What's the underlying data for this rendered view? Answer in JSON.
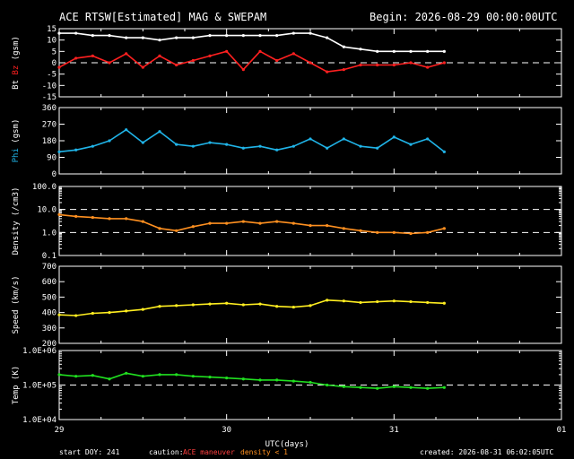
{
  "title": "ACE RTSW[Estimated] MAG & SWEPAM",
  "begin_label": "Begin: 2026-08-29 00:00:00UTC",
  "footer": {
    "start_doy": "start DOY: 241",
    "caution_label": "caution:",
    "maneuver_label": "ACE maneuver",
    "density_caution": "density < 1",
    "created": "created: 2026-08-31 06:02:05UTC",
    "maneuver_color": "#ff4040",
    "density_color": "#ff9020"
  },
  "xaxis": {
    "label": "UTC(days)",
    "ticks": [
      {
        "value": 0,
        "label": "29"
      },
      {
        "value": 1,
        "label": "30"
      },
      {
        "value": 2,
        "label": "31"
      },
      {
        "value": 3,
        "label": "01"
      }
    ],
    "range": [
      0,
      3
    ],
    "data_end": 2.3
  },
  "chart_data": [
    {
      "type": "scatter",
      "panel": "magnetic field",
      "ylabel_parts": [
        {
          "text": "Bt",
          "color": "#ffffff"
        },
        {
          "text": "Bz",
          "color": "#ff2020"
        },
        {
          "text": "(gsm)",
          "color": "#ffffff"
        }
      ],
      "ylim": [
        -15,
        15
      ],
      "ticks": [
        "15",
        "10",
        "5",
        "0",
        "-5",
        "-10",
        "-15"
      ],
      "tick_values": [
        15,
        10,
        5,
        0,
        -5,
        -10,
        -15
      ],
      "dashed_at": 0,
      "series": [
        {
          "name": "Bt",
          "color": "#ffffff",
          "x": [
            0.0,
            0.1,
            0.2,
            0.3,
            0.4,
            0.5,
            0.6,
            0.7,
            0.8,
            0.9,
            1.0,
            1.1,
            1.2,
            1.3,
            1.4,
            1.5,
            1.6,
            1.7,
            1.8,
            1.9,
            2.0,
            2.1,
            2.2,
            2.3
          ],
          "y": [
            13,
            13,
            12,
            12,
            11,
            11,
            10,
            11,
            11,
            12,
            12,
            12,
            12,
            12,
            13,
            13,
            11,
            7,
            6,
            5,
            5,
            5,
            5,
            5
          ]
        },
        {
          "name": "Bz",
          "color": "#ff2020",
          "x": [
            0.0,
            0.1,
            0.2,
            0.3,
            0.4,
            0.5,
            0.6,
            0.7,
            0.8,
            0.9,
            1.0,
            1.1,
            1.2,
            1.3,
            1.4,
            1.5,
            1.6,
            1.7,
            1.8,
            1.9,
            2.0,
            2.1,
            2.2,
            2.3
          ],
          "y": [
            -2,
            2,
            3,
            0,
            4,
            -2,
            3,
            -1,
            1,
            3,
            5,
            -3,
            5,
            1,
            4,
            0,
            -4,
            -3,
            -1,
            -1,
            -1,
            0,
            -2,
            0
          ]
        }
      ]
    },
    {
      "type": "scatter",
      "panel": "phi",
      "ylabel_parts": [
        {
          "text": "Phi",
          "color": "#20b4e8"
        },
        {
          "text": "(gsm)",
          "color": "#ffffff"
        }
      ],
      "ylim": [
        0,
        360
      ],
      "ticks": [
        "360",
        "270",
        "180",
        "90",
        "0"
      ],
      "tick_values": [
        360,
        270,
        180,
        90,
        0
      ],
      "series": [
        {
          "name": "Phi",
          "color": "#20b4e8",
          "x": [
            0.0,
            0.1,
            0.2,
            0.3,
            0.4,
            0.5,
            0.6,
            0.7,
            0.8,
            0.9,
            1.0,
            1.1,
            1.2,
            1.3,
            1.4,
            1.5,
            1.6,
            1.7,
            1.8,
            1.9,
            2.0,
            2.1,
            2.2,
            2.3
          ],
          "y": [
            120,
            130,
            150,
            180,
            240,
            170,
            230,
            160,
            150,
            170,
            160,
            140,
            150,
            130,
            150,
            190,
            140,
            190,
            150,
            140,
            200,
            160,
            190,
            120
          ]
        }
      ]
    },
    {
      "type": "scatter",
      "panel": "density",
      "ylabel": "Density (/cm3)",
      "ylabel_color": "#ff9020",
      "yscale": "log",
      "ylim": [
        0.1,
        100
      ],
      "ticks": [
        "100.0",
        "10.0",
        "1.0",
        "0.1"
      ],
      "tick_values": [
        100,
        10,
        1,
        0.1
      ],
      "dashed_at": [
        10,
        1
      ],
      "series": [
        {
          "name": "Density",
          "color": "#ff9020",
          "x": [
            0.0,
            0.1,
            0.2,
            0.3,
            0.4,
            0.5,
            0.6,
            0.7,
            0.8,
            0.9,
            1.0,
            1.1,
            1.2,
            1.3,
            1.4,
            1.5,
            1.6,
            1.7,
            1.8,
            1.9,
            2.0,
            2.1,
            2.2,
            2.3
          ],
          "y": [
            6,
            5,
            4.5,
            4,
            4,
            3,
            1.5,
            1.2,
            1.8,
            2.5,
            2.5,
            3,
            2.5,
            3,
            2.5,
            2,
            2,
            1.5,
            1.2,
            1,
            1,
            0.9,
            1,
            1.5
          ]
        }
      ]
    },
    {
      "type": "scatter",
      "panel": "speed",
      "ylabel": "Speed (km/s)",
      "ylabel_color": "#ffee20",
      "ylim": [
        200,
        700
      ],
      "ticks": [
        "700",
        "600",
        "500",
        "400",
        "300",
        "200"
      ],
      "tick_values": [
        700,
        600,
        500,
        400,
        300,
        200
      ],
      "series": [
        {
          "name": "Speed",
          "color": "#ffee20",
          "x": [
            0.0,
            0.1,
            0.2,
            0.3,
            0.4,
            0.5,
            0.6,
            0.7,
            0.8,
            0.9,
            1.0,
            1.1,
            1.2,
            1.3,
            1.4,
            1.5,
            1.6,
            1.7,
            1.8,
            1.9,
            2.0,
            2.1,
            2.2,
            2.3
          ],
          "y": [
            385,
            380,
            395,
            400,
            410,
            420,
            440,
            445,
            450,
            455,
            460,
            450,
            455,
            440,
            435,
            445,
            480,
            475,
            465,
            470,
            475,
            470,
            465,
            460
          ]
        }
      ]
    },
    {
      "type": "scatter",
      "panel": "temperature",
      "ylabel": "Temp (K)",
      "ylabel_color": "#20e020",
      "yscale": "log",
      "ylim": [
        10000,
        1000000
      ],
      "ticks": [
        "1.0E+06",
        "1.0E+05",
        "1.0E+04"
      ],
      "tick_values": [
        1000000,
        100000,
        10000
      ],
      "dashed_at": [
        100000
      ],
      "series": [
        {
          "name": "Temp",
          "color": "#20e020",
          "x": [
            0.0,
            0.1,
            0.2,
            0.3,
            0.4,
            0.5,
            0.6,
            0.7,
            0.8,
            0.9,
            1.0,
            1.1,
            1.2,
            1.3,
            1.4,
            1.5,
            1.6,
            1.7,
            1.8,
            1.9,
            2.0,
            2.1,
            2.2,
            2.3
          ],
          "y": [
            200000,
            180000,
            190000,
            150000,
            220000,
            180000,
            200000,
            200000,
            180000,
            170000,
            160000,
            150000,
            140000,
            140000,
            130000,
            120000,
            100000,
            90000,
            85000,
            80000,
            90000,
            85000,
            80000,
            85000
          ]
        }
      ]
    }
  ]
}
